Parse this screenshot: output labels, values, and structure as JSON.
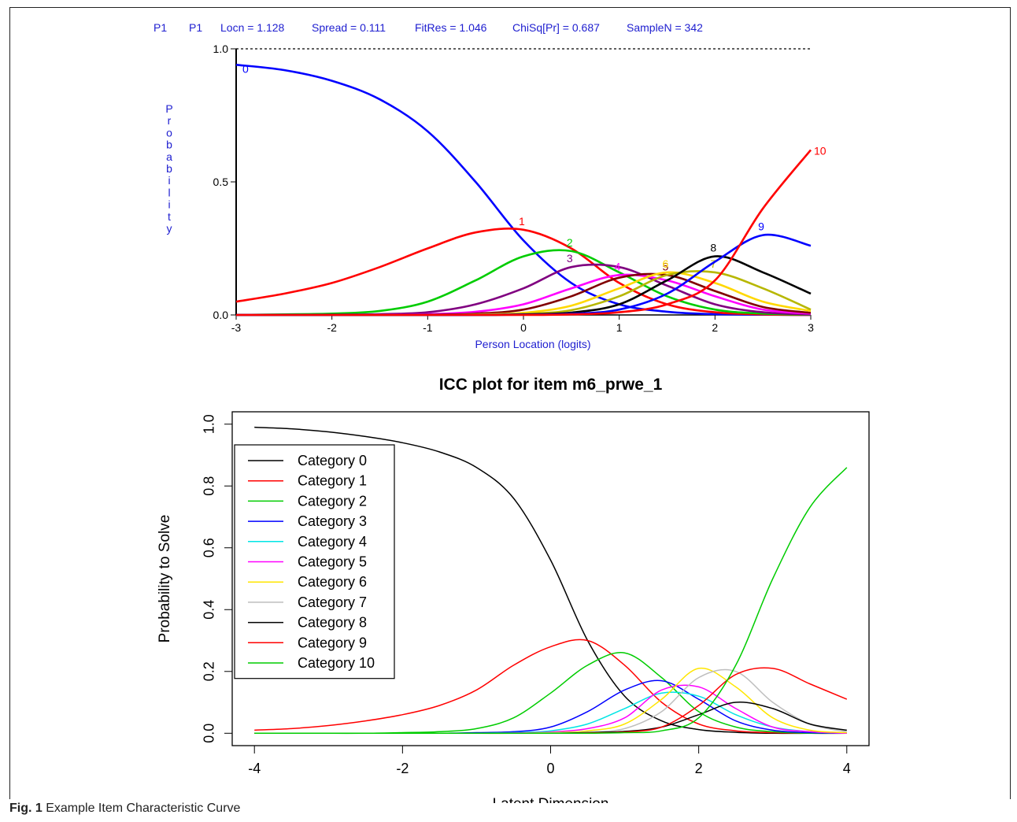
{
  "caption": {
    "label": "Fig. 1",
    "text": "Example Item Characteristic Curve"
  },
  "top_header": [
    "P1",
    "P1",
    "Locn = 1.128",
    "Spread = 0.111",
    "FitRes = 1.046",
    "ChiSq[Pr] = 0.687",
    "SampleN = 342"
  ],
  "colors": {
    "top": [
      "#0000ff",
      "#ff0000",
      "#00cc00",
      "#800080",
      "#ff00ff",
      "#800000",
      "#ffd800",
      "#b7b700",
      "#000000",
      "#0000ff",
      "#ff0000"
    ],
    "bottom": [
      "#000000",
      "#ff0000",
      "#00cc00",
      "#0000ff",
      "#00e5e5",
      "#ff00ff",
      "#ffe600",
      "#bebebe",
      "#000000",
      "#ff0000",
      "#00cc00"
    ]
  },
  "chart_data": [
    {
      "type": "line",
      "title": "",
      "xlabel": "Person Location (logits)",
      "ylabel": "Probability",
      "xlim": [
        -3,
        3
      ],
      "ylim": [
        0,
        1
      ],
      "x_ticks": [
        "-3",
        "-2",
        "-1",
        "0",
        "1",
        "2",
        "3"
      ],
      "y_ticks": [
        "0.0",
        "0.5",
        "1.0"
      ],
      "reference_line": 1.0,
      "x": [
        -3,
        -2.5,
        -2,
        -1.5,
        -1,
        -0.5,
        0,
        0.5,
        1,
        1.5,
        2,
        2.5,
        3
      ],
      "series": [
        {
          "name": "0",
          "values": [
            0.94,
            0.92,
            0.88,
            0.81,
            0.69,
            0.5,
            0.28,
            0.12,
            0.04,
            0.012,
            0.003,
            0.001,
            0
          ]
        },
        {
          "name": "1",
          "values": [
            0.05,
            0.08,
            0.12,
            0.18,
            0.25,
            0.31,
            0.32,
            0.25,
            0.12,
            0.04,
            0.01,
            0.002,
            0
          ]
        },
        {
          "name": "2",
          "values": [
            0,
            0.002,
            0.005,
            0.015,
            0.05,
            0.13,
            0.22,
            0.24,
            0.16,
            0.07,
            0.02,
            0.005,
            0.001
          ]
        },
        {
          "name": "3",
          "values": [
            0,
            0,
            0.001,
            0.003,
            0.01,
            0.04,
            0.1,
            0.18,
            0.18,
            0.11,
            0.04,
            0.01,
            0.002
          ]
        },
        {
          "name": "4",
          "values": [
            0,
            0,
            0,
            0.001,
            0.003,
            0.012,
            0.04,
            0.1,
            0.15,
            0.13,
            0.07,
            0.02,
            0.005
          ]
        },
        {
          "name": "5",
          "values": [
            0,
            0,
            0,
            0,
            0.001,
            0.005,
            0.02,
            0.07,
            0.14,
            0.15,
            0.09,
            0.03,
            0.008
          ]
        },
        {
          "name": "6",
          "values": [
            0,
            0,
            0,
            0,
            0,
            0.002,
            0.008,
            0.035,
            0.1,
            0.16,
            0.12,
            0.05,
            0.015
          ]
        },
        {
          "name": "7",
          "values": [
            0,
            0,
            0,
            0,
            0,
            0.001,
            0.004,
            0.018,
            0.07,
            0.15,
            0.16,
            0.1,
            0.02
          ]
        },
        {
          "name": "8",
          "values": [
            0,
            0,
            0,
            0,
            0,
            0,
            0.002,
            0.009,
            0.04,
            0.13,
            0.22,
            0.16,
            0.08
          ]
        },
        {
          "name": "9",
          "values": [
            0,
            0,
            0,
            0,
            0,
            0,
            0.001,
            0.004,
            0.02,
            0.08,
            0.2,
            0.3,
            0.26
          ]
        },
        {
          "name": "10",
          "values": [
            0,
            0,
            0,
            0,
            0,
            0,
            0,
            0.002,
            0.01,
            0.04,
            0.13,
            0.4,
            0.62
          ]
        }
      ]
    },
    {
      "type": "line",
      "title": "ICC plot for item m6_prwe_1",
      "xlabel": "Latent Dimension",
      "ylabel": "Probability to Solve",
      "xlim": [
        -4,
        4
      ],
      "ylim": [
        0,
        1
      ],
      "x_ticks": [
        "-4",
        "-2",
        "0",
        "2",
        "4"
      ],
      "y_ticks": [
        "0.0",
        "0.2",
        "0.4",
        "0.6",
        "0.8",
        "1.0"
      ],
      "legend_position": "top-left",
      "x": [
        -4,
        -3.5,
        -3,
        -2.5,
        -2,
        -1.5,
        -1,
        -0.5,
        0,
        0.5,
        1,
        1.5,
        2,
        2.5,
        3,
        3.5,
        4
      ],
      "series": [
        {
          "name": "Category 0",
          "values": [
            0.99,
            0.985,
            0.975,
            0.96,
            0.94,
            0.91,
            0.86,
            0.76,
            0.56,
            0.3,
            0.12,
            0.04,
            0.012,
            0.003,
            0,
            0,
            0
          ]
        },
        {
          "name": "Category 1",
          "values": [
            0.01,
            0.015,
            0.025,
            0.04,
            0.06,
            0.09,
            0.14,
            0.22,
            0.28,
            0.3,
            0.22,
            0.1,
            0.03,
            0.008,
            0.002,
            0,
            0
          ]
        },
        {
          "name": "Category 2",
          "values": [
            0,
            0,
            0,
            0,
            0.002,
            0.005,
            0.015,
            0.05,
            0.13,
            0.22,
            0.26,
            0.18,
            0.07,
            0.02,
            0.005,
            0,
            0
          ]
        },
        {
          "name": "Category 3",
          "values": [
            0,
            0,
            0,
            0,
            0,
            0,
            0.002,
            0.005,
            0.02,
            0.07,
            0.14,
            0.17,
            0.11,
            0.04,
            0.01,
            0.002,
            0
          ]
        },
        {
          "name": "Category 4",
          "values": [
            0,
            0,
            0,
            0,
            0,
            0,
            0,
            0.002,
            0.008,
            0.03,
            0.08,
            0.13,
            0.12,
            0.06,
            0.02,
            0.005,
            0
          ]
        },
        {
          "name": "Category 5",
          "values": [
            0,
            0,
            0,
            0,
            0,
            0,
            0,
            0.001,
            0.004,
            0.015,
            0.05,
            0.14,
            0.15,
            0.08,
            0.02,
            0.005,
            0
          ]
        },
        {
          "name": "Category 6",
          "values": [
            0,
            0,
            0,
            0,
            0,
            0,
            0,
            0,
            0.002,
            0.008,
            0.03,
            0.11,
            0.21,
            0.15,
            0.05,
            0.01,
            0.002
          ]
        },
        {
          "name": "Category 7",
          "values": [
            0,
            0,
            0,
            0,
            0,
            0,
            0,
            0,
            0.001,
            0.004,
            0.015,
            0.07,
            0.18,
            0.2,
            0.1,
            0.03,
            0.005
          ]
        },
        {
          "name": "Category 8",
          "values": [
            0,
            0,
            0,
            0,
            0,
            0,
            0,
            0,
            0,
            0.002,
            0.006,
            0.02,
            0.06,
            0.1,
            0.08,
            0.03,
            0.01
          ]
        },
        {
          "name": "Category 9",
          "values": [
            0,
            0,
            0,
            0,
            0,
            0,
            0,
            0,
            0,
            0.001,
            0.004,
            0.02,
            0.09,
            0.19,
            0.21,
            0.16,
            0.11
          ]
        },
        {
          "name": "Category 10",
          "values": [
            0,
            0,
            0,
            0,
            0,
            0,
            0,
            0,
            0,
            0,
            0.002,
            0.008,
            0.05,
            0.22,
            0.5,
            0.73,
            0.86
          ]
        }
      ]
    }
  ]
}
